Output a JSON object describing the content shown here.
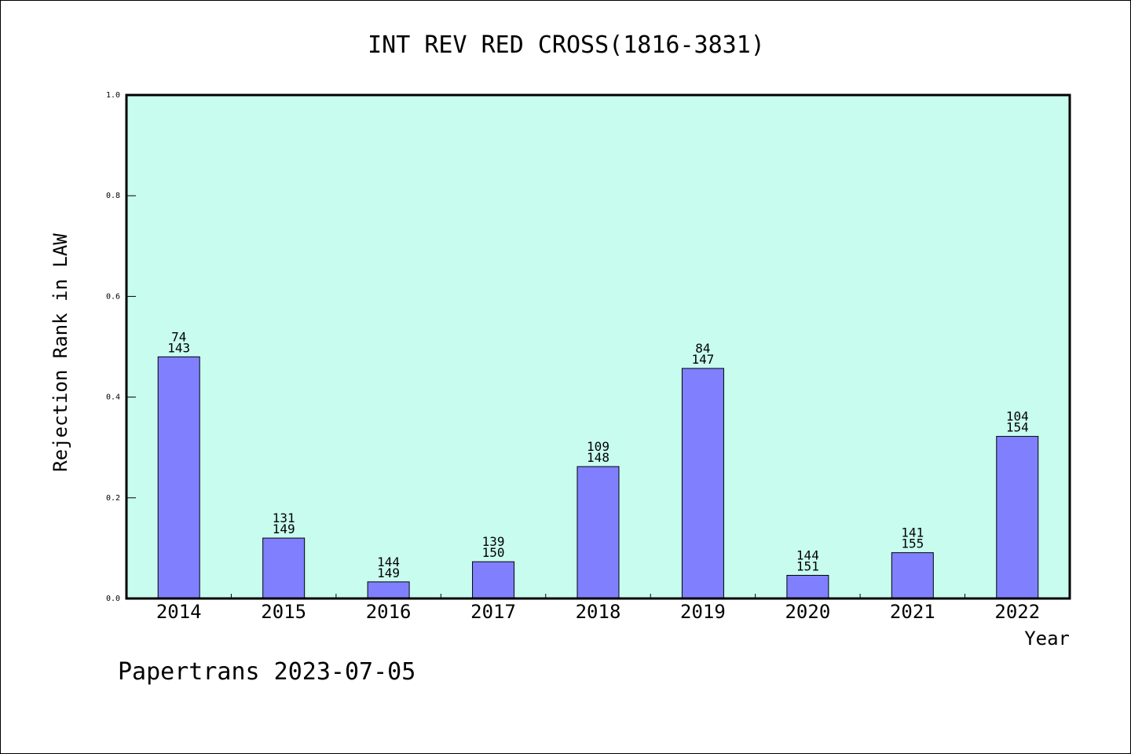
{
  "chart_data": {
    "type": "bar",
    "title": "INT REV RED CROSS(1816-3831)",
    "xlabel": "Year",
    "ylabel": "Rejection Rank in LAW",
    "ylim": [
      0,
      1.0
    ],
    "yticks": [
      "0.0",
      "0.2",
      "0.4",
      "0.6",
      "0.8",
      "1.0"
    ],
    "categories": [
      "2014",
      "2015",
      "2016",
      "2017",
      "2018",
      "2019",
      "2020",
      "2021",
      "2022"
    ],
    "values": [
      0.48,
      0.12,
      0.033,
      0.073,
      0.262,
      0.457,
      0.046,
      0.091,
      0.322
    ],
    "label_top": [
      "74",
      "131",
      "144",
      "139",
      "109",
      "84",
      "144",
      "141",
      "104"
    ],
    "label_bottom": [
      "143",
      "149",
      "149",
      "150",
      "148",
      "147",
      "151",
      "155",
      "154"
    ],
    "bar_color": "#8080ff",
    "plot_background": "#c8fcee",
    "grid": false,
    "legend": "none"
  },
  "footer": {
    "text": "Papertrans 2023-07-05"
  }
}
